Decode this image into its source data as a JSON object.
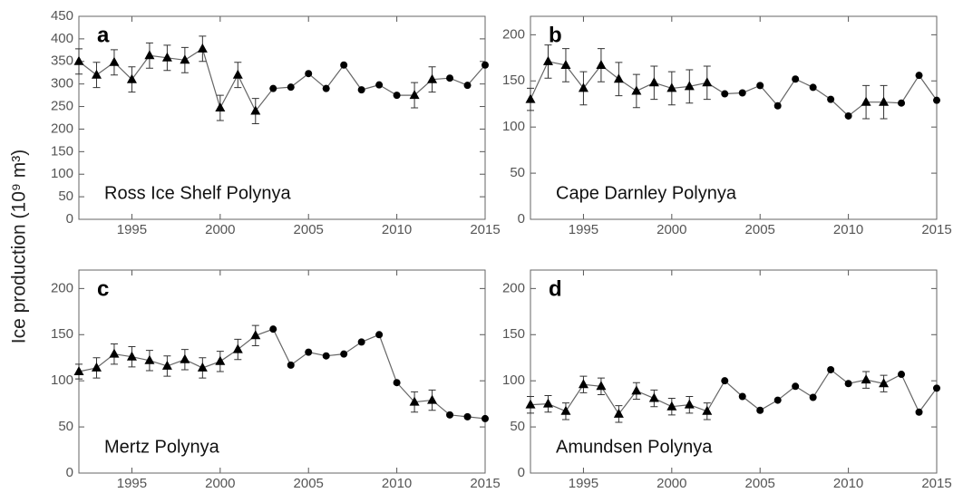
{
  "ylabel": "Ice production (10⁹ m³)",
  "chart_data": [
    {
      "type": "line",
      "label": "a",
      "title": "Ross Ice Shelf Polynya",
      "color": "#000000",
      "x": [
        1992,
        1993,
        1994,
        1995,
        1996,
        1997,
        1998,
        1999,
        2000,
        2001,
        2002,
        2003,
        2004,
        2005,
        2006,
        2007,
        2008,
        2009,
        2010,
        2011,
        2012,
        2013,
        2014,
        2015
      ],
      "values": [
        350,
        320,
        348,
        310,
        363,
        358,
        353,
        378,
        247,
        320,
        240,
        290,
        293,
        323,
        290,
        342,
        287,
        298,
        275,
        275,
        310,
        313,
        297,
        342
      ],
      "errors": [
        28,
        28,
        28,
        28,
        28,
        28,
        28,
        28,
        28,
        28,
        28,
        null,
        null,
        null,
        null,
        null,
        null,
        null,
        null,
        28,
        28,
        null,
        null,
        null
      ],
      "xlim": [
        1992,
        2015
      ],
      "xticks": [
        1995,
        2000,
        2005,
        2010,
        2015
      ],
      "ylim": [
        0,
        450
      ],
      "yticks": [
        0,
        50,
        100,
        150,
        200,
        250,
        300,
        350,
        400,
        450
      ]
    },
    {
      "type": "line",
      "label": "b",
      "title": "Cape Darnley Polynya",
      "color": "#000000",
      "x": [
        1992,
        1993,
        1994,
        1995,
        1996,
        1997,
        1998,
        1999,
        2000,
        2001,
        2002,
        2003,
        2004,
        2005,
        2006,
        2007,
        2008,
        2009,
        2010,
        2011,
        2012,
        2013,
        2014,
        2015
      ],
      "values": [
        130,
        171,
        167,
        142,
        167,
        152,
        139,
        148,
        142,
        144,
        148,
        136,
        137,
        145,
        123,
        152,
        143,
        130,
        112,
        127,
        127,
        126,
        156,
        129
      ],
      "errors": [
        12,
        18,
        18,
        18,
        18,
        18,
        18,
        18,
        18,
        18,
        18,
        null,
        null,
        null,
        null,
        null,
        null,
        null,
        null,
        18,
        18,
        null,
        null,
        null
      ],
      "xlim": [
        1992,
        2015
      ],
      "xticks": [
        1995,
        2000,
        2005,
        2010,
        2015
      ],
      "ylim": [
        0,
        220
      ],
      "yticks": [
        0,
        50,
        100,
        150,
        200
      ]
    },
    {
      "type": "line",
      "label": "c",
      "title": "Mertz Polynya",
      "color": "#000000",
      "x": [
        1992,
        1993,
        1994,
        1995,
        1996,
        1997,
        1998,
        1999,
        2000,
        2001,
        2002,
        2003,
        2004,
        2005,
        2006,
        2007,
        2008,
        2009,
        2010,
        2011,
        2012,
        2013,
        2014,
        2015
      ],
      "values": [
        110,
        114,
        129,
        126,
        122,
        116,
        123,
        114,
        121,
        134,
        149,
        156,
        117,
        131,
        127,
        129,
        142,
        150,
        98,
        77,
        79,
        63,
        61,
        59
      ],
      "errors": [
        8,
        11,
        11,
        11,
        11,
        11,
        11,
        11,
        11,
        11,
        11,
        null,
        null,
        null,
        null,
        null,
        null,
        null,
        null,
        11,
        11,
        null,
        null,
        null
      ],
      "xlim": [
        1992,
        2015
      ],
      "xticks": [
        1995,
        2000,
        2005,
        2010,
        2015
      ],
      "ylim": [
        0,
        220
      ],
      "yticks": [
        0,
        50,
        100,
        150,
        200
      ]
    },
    {
      "type": "line",
      "label": "d",
      "title": "Amundsen Polynya",
      "color": "#000000",
      "x": [
        1992,
        1993,
        1994,
        1995,
        1996,
        1997,
        1998,
        1999,
        2000,
        2001,
        2002,
        2003,
        2004,
        2005,
        2006,
        2007,
        2008,
        2009,
        2010,
        2011,
        2012,
        2013,
        2014,
        2015
      ],
      "values": [
        74,
        75,
        67,
        96,
        94,
        64,
        89,
        81,
        72,
        74,
        67,
        100,
        83,
        68,
        79,
        94,
        82,
        112,
        97,
        101,
        97,
        107,
        66,
        92
      ],
      "errors": [
        9,
        9,
        9,
        9,
        9,
        9,
        9,
        9,
        9,
        9,
        9,
        null,
        null,
        null,
        null,
        null,
        null,
        null,
        null,
        9,
        9,
        null,
        null,
        null
      ],
      "xlim": [
        1992,
        2015
      ],
      "xticks": [
        1995,
        2000,
        2005,
        2010,
        2015
      ],
      "ylim": [
        0,
        220
      ],
      "yticks": [
        0,
        50,
        100,
        150,
        200
      ]
    }
  ]
}
